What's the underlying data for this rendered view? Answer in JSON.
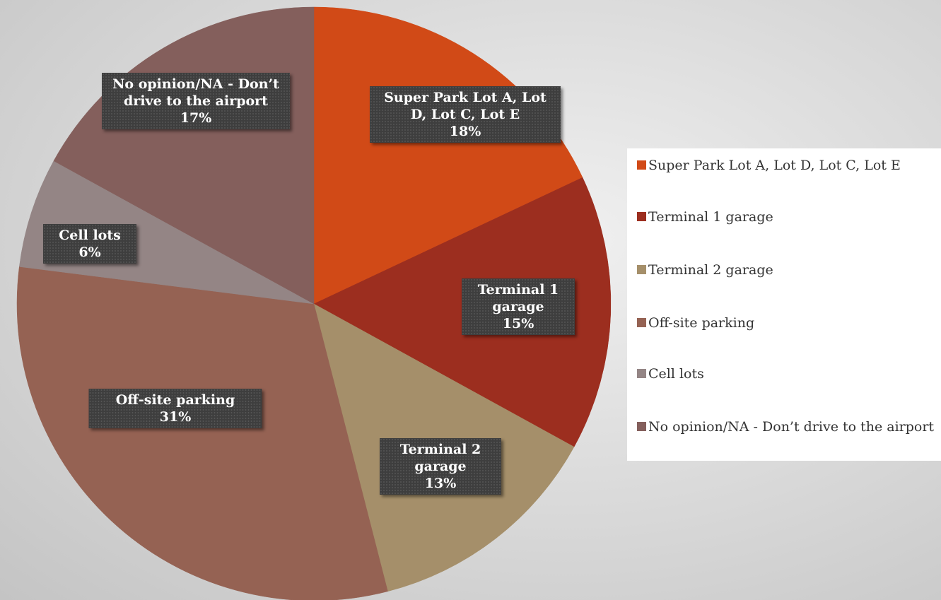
{
  "chart_data": {
    "type": "pie",
    "categories": [
      "Super Park Lot A, Lot D, Lot C, Lot E",
      "Terminal 1 garage",
      "Terminal 2 garage",
      "Off-site parking",
      "Cell lots",
      "No opinion/NA - Don’t drive to the airport"
    ],
    "values": [
      18,
      15,
      13,
      31,
      6,
      17
    ],
    "value_labels": [
      "18%",
      "15%",
      "13%",
      "31%",
      "6%",
      "17%"
    ],
    "colors": [
      "#d14a17",
      "#9c2e1f",
      "#a58f6a",
      "#956253",
      "#948585",
      "#845f5c"
    ],
    "legend": "right"
  }
}
